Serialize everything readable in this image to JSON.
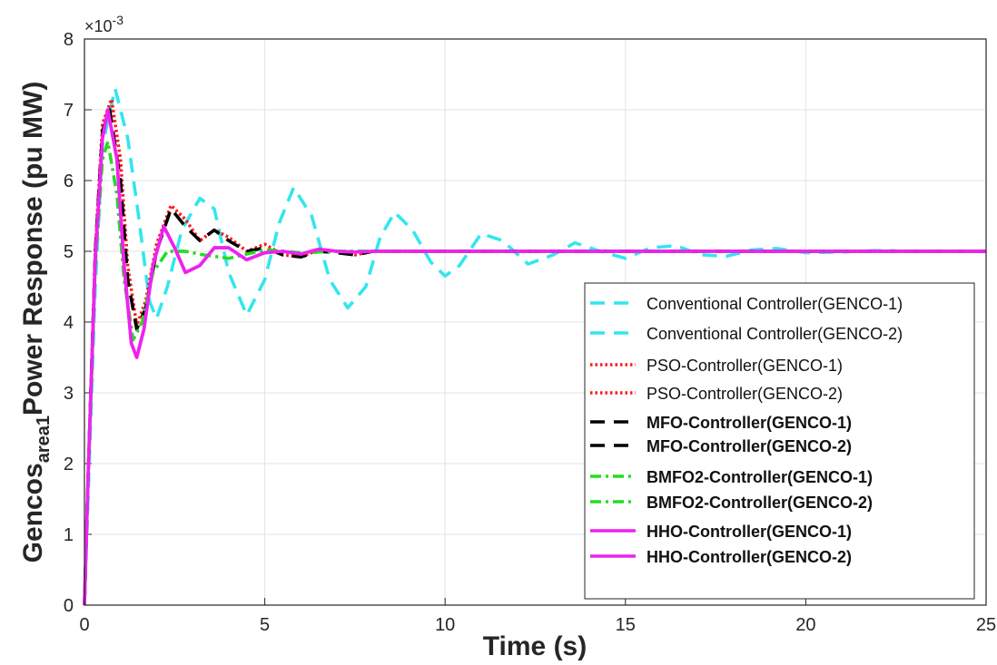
{
  "chart_data": {
    "type": "line",
    "xlabel": "Time (s)",
    "ylabel_main": "Gencos",
    "ylabel_sub": "area1",
    "ylabel_rest": "Power Response (pu MW)",
    "exponent_label": "×10",
    "exponent_power": "-3",
    "xlim": [
      0,
      25
    ],
    "ylim": [
      0,
      8
    ],
    "xticks": [
      0,
      5,
      10,
      15,
      20,
      25
    ],
    "yticks": [
      0,
      1,
      2,
      3,
      4,
      5,
      6,
      7,
      8
    ],
    "grid": true,
    "legend_position": "bottom-right",
    "series": [
      {
        "name": "Conventional Controller(GENCO-1)",
        "color": "#33e6ee",
        "style": "dashed",
        "bold": false,
        "points": [
          [
            0,
            0
          ],
          [
            0.1,
            1.5
          ],
          [
            0.3,
            4.5
          ],
          [
            0.5,
            6.5
          ],
          [
            0.85,
            7.3
          ],
          [
            1.2,
            6.6
          ],
          [
            1.5,
            5.5
          ],
          [
            1.8,
            4.3
          ],
          [
            2.0,
            4.05
          ],
          [
            2.3,
            4.5
          ],
          [
            2.7,
            5.3
          ],
          [
            3.2,
            5.75
          ],
          [
            3.6,
            5.6
          ],
          [
            4.0,
            4.7
          ],
          [
            4.5,
            4.1
          ],
          [
            5.0,
            4.6
          ],
          [
            5.4,
            5.4
          ],
          [
            5.8,
            5.9
          ],
          [
            6.3,
            5.5
          ],
          [
            6.8,
            4.6
          ],
          [
            7.3,
            4.2
          ],
          [
            7.8,
            4.5
          ],
          [
            8.2,
            5.2
          ],
          [
            8.6,
            5.55
          ],
          [
            9.1,
            5.3
          ],
          [
            9.6,
            4.85
          ],
          [
            10.0,
            4.65
          ],
          [
            10.4,
            4.8
          ],
          [
            11.0,
            5.25
          ],
          [
            11.6,
            5.15
          ],
          [
            12.3,
            4.82
          ],
          [
            13.0,
            4.95
          ],
          [
            13.6,
            5.12
          ],
          [
            14.3,
            5.0
          ],
          [
            15.0,
            4.9
          ],
          [
            15.7,
            5.05
          ],
          [
            16.4,
            5.08
          ],
          [
            17.1,
            4.95
          ],
          [
            17.8,
            4.93
          ],
          [
            18.5,
            5.02
          ],
          [
            19.2,
            5.04
          ],
          [
            20.0,
            4.98
          ],
          [
            21.0,
            4.99
          ],
          [
            22.0,
            5.01
          ],
          [
            23.0,
            5.0
          ],
          [
            25.0,
            5.0
          ]
        ]
      },
      {
        "name": "Conventional Controller(GENCO-2)",
        "color": "#33e6ee",
        "style": "dashed",
        "bold": false,
        "points": [
          [
            0,
            0
          ],
          [
            0.1,
            1.5
          ],
          [
            0.3,
            4.5
          ],
          [
            0.5,
            6.5
          ],
          [
            0.85,
            7.3
          ],
          [
            1.2,
            6.6
          ],
          [
            1.5,
            5.5
          ],
          [
            1.8,
            4.3
          ],
          [
            2.0,
            4.05
          ],
          [
            2.3,
            4.5
          ],
          [
            2.7,
            5.3
          ],
          [
            3.2,
            5.75
          ],
          [
            3.6,
            5.6
          ],
          [
            4.0,
            4.7
          ],
          [
            4.5,
            4.1
          ],
          [
            5.0,
            4.6
          ],
          [
            5.4,
            5.4
          ],
          [
            5.8,
            5.9
          ],
          [
            6.3,
            5.5
          ],
          [
            6.8,
            4.6
          ],
          [
            7.3,
            4.2
          ],
          [
            7.8,
            4.5
          ],
          [
            8.2,
            5.2
          ],
          [
            8.6,
            5.55
          ],
          [
            9.1,
            5.3
          ],
          [
            9.6,
            4.85
          ],
          [
            10.0,
            4.65
          ],
          [
            10.4,
            4.8
          ],
          [
            11.0,
            5.25
          ],
          [
            11.6,
            5.15
          ],
          [
            12.3,
            4.82
          ],
          [
            13.0,
            4.95
          ],
          [
            13.6,
            5.12
          ],
          [
            14.3,
            5.0
          ],
          [
            15.0,
            4.9
          ],
          [
            15.7,
            5.05
          ],
          [
            16.4,
            5.08
          ],
          [
            17.1,
            4.95
          ],
          [
            17.8,
            4.93
          ],
          [
            18.5,
            5.02
          ],
          [
            19.2,
            5.04
          ],
          [
            20.0,
            4.98
          ],
          [
            21.0,
            4.99
          ],
          [
            22.0,
            5.01
          ],
          [
            23.0,
            5.0
          ],
          [
            25.0,
            5.0
          ]
        ]
      },
      {
        "name": "PSO-Controller(GENCO-1)",
        "color": "#ff1a1a",
        "style": "dotted",
        "bold": false,
        "points": [
          [
            0,
            0
          ],
          [
            0.1,
            1.8
          ],
          [
            0.3,
            5.0
          ],
          [
            0.5,
            6.8
          ],
          [
            0.75,
            7.15
          ],
          [
            1.0,
            6.3
          ],
          [
            1.2,
            4.8
          ],
          [
            1.45,
            3.95
          ],
          [
            1.7,
            4.3
          ],
          [
            2.0,
            5.1
          ],
          [
            2.4,
            5.65
          ],
          [
            2.8,
            5.45
          ],
          [
            3.2,
            5.15
          ],
          [
            3.6,
            5.3
          ],
          [
            4.0,
            5.2
          ],
          [
            4.5,
            5.0
          ],
          [
            5.0,
            5.1
          ],
          [
            5.5,
            4.95
          ],
          [
            6.0,
            4.92
          ],
          [
            6.5,
            5.02
          ],
          [
            7.0,
            5.0
          ],
          [
            7.5,
            4.95
          ],
          [
            8.0,
            5.0
          ],
          [
            9.0,
            5.0
          ],
          [
            25.0,
            5.0
          ]
        ]
      },
      {
        "name": "PSO-Controller(GENCO-2)",
        "color": "#ff1a1a",
        "style": "dotted",
        "bold": false,
        "points": [
          [
            0,
            0
          ],
          [
            0.1,
            1.8
          ],
          [
            0.3,
            5.0
          ],
          [
            0.5,
            6.8
          ],
          [
            0.75,
            7.15
          ],
          [
            1.0,
            6.3
          ],
          [
            1.2,
            4.8
          ],
          [
            1.45,
            3.95
          ],
          [
            1.7,
            4.3
          ],
          [
            2.0,
            5.1
          ],
          [
            2.4,
            5.65
          ],
          [
            2.8,
            5.45
          ],
          [
            3.2,
            5.15
          ],
          [
            3.6,
            5.3
          ],
          [
            4.0,
            5.2
          ],
          [
            4.5,
            5.0
          ],
          [
            5.0,
            5.1
          ],
          [
            5.5,
            4.95
          ],
          [
            6.0,
            4.92
          ],
          [
            6.5,
            5.02
          ],
          [
            7.0,
            5.0
          ],
          [
            7.5,
            4.95
          ],
          [
            8.0,
            5.0
          ],
          [
            9.0,
            5.0
          ],
          [
            25.0,
            5.0
          ]
        ]
      },
      {
        "name": "MFO-Controller(GENCO-1)",
        "color": "#000000",
        "style": "dashed",
        "bold": true,
        "points": [
          [
            0,
            0
          ],
          [
            0.1,
            1.8
          ],
          [
            0.3,
            5.0
          ],
          [
            0.5,
            6.7
          ],
          [
            0.7,
            7.0
          ],
          [
            1.0,
            6.0
          ],
          [
            1.2,
            4.6
          ],
          [
            1.45,
            3.9
          ],
          [
            1.7,
            4.2
          ],
          [
            2.0,
            5.0
          ],
          [
            2.4,
            5.6
          ],
          [
            2.8,
            5.35
          ],
          [
            3.2,
            5.15
          ],
          [
            3.6,
            5.3
          ],
          [
            4.0,
            5.15
          ],
          [
            4.5,
            5.0
          ],
          [
            5.0,
            5.05
          ],
          [
            5.5,
            4.95
          ],
          [
            6.0,
            4.92
          ],
          [
            6.5,
            5.0
          ],
          [
            7.0,
            4.98
          ],
          [
            7.5,
            4.95
          ],
          [
            8.0,
            5.0
          ],
          [
            9.0,
            5.0
          ],
          [
            25.0,
            5.0
          ]
        ]
      },
      {
        "name": "MFO-Controller(GENCO-2)",
        "color": "#000000",
        "style": "dashed",
        "bold": true,
        "points": [
          [
            0,
            0
          ],
          [
            0.1,
            1.8
          ],
          [
            0.3,
            5.0
          ],
          [
            0.5,
            6.7
          ],
          [
            0.7,
            7.0
          ],
          [
            1.0,
            6.0
          ],
          [
            1.2,
            4.6
          ],
          [
            1.45,
            3.9
          ],
          [
            1.7,
            4.2
          ],
          [
            2.0,
            5.0
          ],
          [
            2.4,
            5.6
          ],
          [
            2.8,
            5.35
          ],
          [
            3.2,
            5.15
          ],
          [
            3.6,
            5.3
          ],
          [
            4.0,
            5.15
          ],
          [
            4.5,
            5.0
          ],
          [
            5.0,
            5.05
          ],
          [
            5.5,
            4.95
          ],
          [
            6.0,
            4.92
          ],
          [
            6.5,
            5.0
          ],
          [
            7.0,
            4.98
          ],
          [
            7.5,
            4.95
          ],
          [
            8.0,
            5.0
          ],
          [
            9.0,
            5.0
          ],
          [
            25.0,
            5.0
          ]
        ]
      },
      {
        "name": "BMFO2-Controller(GENCO-1)",
        "color": "#22dd22",
        "style": "dashdot",
        "bold": true,
        "points": [
          [
            0,
            0
          ],
          [
            0.1,
            1.7
          ],
          [
            0.3,
            4.8
          ],
          [
            0.5,
            6.3
          ],
          [
            0.65,
            6.55
          ],
          [
            0.9,
            5.8
          ],
          [
            1.1,
            4.6
          ],
          [
            1.35,
            3.75
          ],
          [
            1.6,
            4.0
          ],
          [
            1.9,
            4.7
          ],
          [
            2.3,
            5.0
          ],
          [
            2.8,
            5.0
          ],
          [
            3.3,
            4.95
          ],
          [
            4.0,
            4.9
          ],
          [
            5.0,
            5.02
          ],
          [
            6.0,
            4.98
          ],
          [
            7.0,
            5.0
          ],
          [
            25.0,
            5.0
          ]
        ]
      },
      {
        "name": "BMFO2-Controller(GENCO-2)",
        "color": "#22dd22",
        "style": "dashdot",
        "bold": true,
        "points": [
          [
            0,
            0
          ],
          [
            0.1,
            1.7
          ],
          [
            0.3,
            4.8
          ],
          [
            0.5,
            6.3
          ],
          [
            0.65,
            6.55
          ],
          [
            0.9,
            5.8
          ],
          [
            1.1,
            4.6
          ],
          [
            1.35,
            3.75
          ],
          [
            1.6,
            4.0
          ],
          [
            1.9,
            4.7
          ],
          [
            2.3,
            5.0
          ],
          [
            2.8,
            5.0
          ],
          [
            3.3,
            4.95
          ],
          [
            4.0,
            4.9
          ],
          [
            5.0,
            5.02
          ],
          [
            6.0,
            4.98
          ],
          [
            7.0,
            5.0
          ],
          [
            25.0,
            5.0
          ]
        ]
      },
      {
        "name": "HHO-Controller(GENCO-1)",
        "color": "#ee22ee",
        "style": "solid",
        "bold": true,
        "points": [
          [
            0,
            0
          ],
          [
            0.1,
            1.8
          ],
          [
            0.3,
            4.9
          ],
          [
            0.5,
            6.6
          ],
          [
            0.65,
            7.0
          ],
          [
            0.9,
            6.3
          ],
          [
            1.1,
            4.8
          ],
          [
            1.3,
            3.7
          ],
          [
            1.45,
            3.5
          ],
          [
            1.65,
            3.9
          ],
          [
            1.9,
            4.8
          ],
          [
            2.2,
            5.35
          ],
          [
            2.5,
            5.05
          ],
          [
            2.8,
            4.7
          ],
          [
            3.2,
            4.8
          ],
          [
            3.6,
            5.05
          ],
          [
            4.0,
            5.05
          ],
          [
            4.5,
            4.88
          ],
          [
            5.0,
            4.98
          ],
          [
            5.5,
            5.0
          ],
          [
            6.0,
            4.96
          ],
          [
            6.5,
            5.03
          ],
          [
            7.0,
            5.0
          ],
          [
            7.5,
            4.99
          ],
          [
            8.0,
            5.0
          ],
          [
            25.0,
            5.0
          ]
        ]
      },
      {
        "name": "HHO-Controller(GENCO-2)",
        "color": "#ee22ee",
        "style": "solid",
        "bold": true,
        "points": [
          [
            0,
            0
          ],
          [
            0.1,
            1.8
          ],
          [
            0.3,
            4.9
          ],
          [
            0.5,
            6.6
          ],
          [
            0.65,
            7.0
          ],
          [
            0.9,
            6.3
          ],
          [
            1.1,
            4.8
          ],
          [
            1.3,
            3.7
          ],
          [
            1.45,
            3.5
          ],
          [
            1.65,
            3.9
          ],
          [
            1.9,
            4.8
          ],
          [
            2.2,
            5.35
          ],
          [
            2.5,
            5.05
          ],
          [
            2.8,
            4.7
          ],
          [
            3.2,
            4.8
          ],
          [
            3.6,
            5.05
          ],
          [
            4.0,
            5.05
          ],
          [
            4.5,
            4.88
          ],
          [
            5.0,
            4.98
          ],
          [
            5.5,
            5.0
          ],
          [
            6.0,
            4.96
          ],
          [
            6.5,
            5.03
          ],
          [
            7.0,
            5.0
          ],
          [
            7.5,
            4.99
          ],
          [
            8.0,
            5.0
          ],
          [
            25.0,
            5.0
          ]
        ]
      }
    ]
  }
}
